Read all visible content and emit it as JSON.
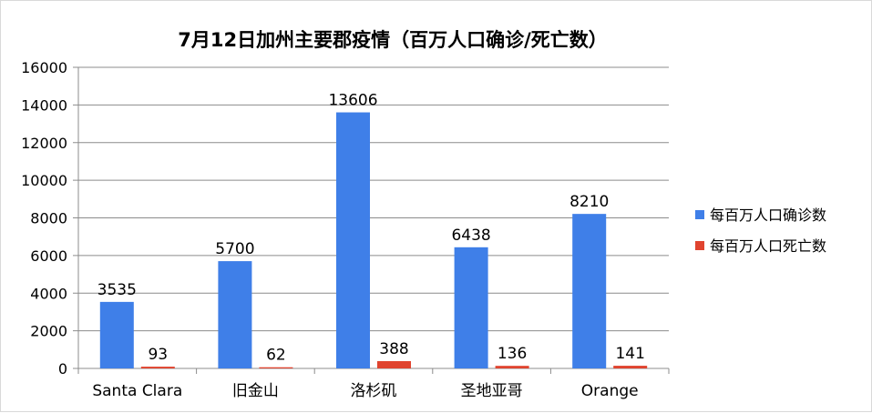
{
  "chart_data": {
    "type": "bar",
    "title": "7月12日加州主要郡疫情（百万人口确诊/死亡数）",
    "xlabel": "",
    "ylabel": "",
    "categories": [
      "Santa Clara",
      "旧金山",
      "洛杉矶",
      "圣地亚哥",
      "Orange"
    ],
    "series": [
      {
        "name": "每百万人口确诊数",
        "values": [
          3535,
          5700,
          13606,
          6438,
          8210
        ],
        "color": "#3f7fe8"
      },
      {
        "name": "每百万人口死亡数",
        "values": [
          93,
          62,
          388,
          136,
          141
        ],
        "color": "#e0442f"
      }
    ],
    "ylim": [
      0,
      16000
    ],
    "yticks": [
      0,
      2000,
      4000,
      6000,
      8000,
      10000,
      12000,
      14000,
      16000
    ],
    "grid": true,
    "legend_position": "right"
  }
}
